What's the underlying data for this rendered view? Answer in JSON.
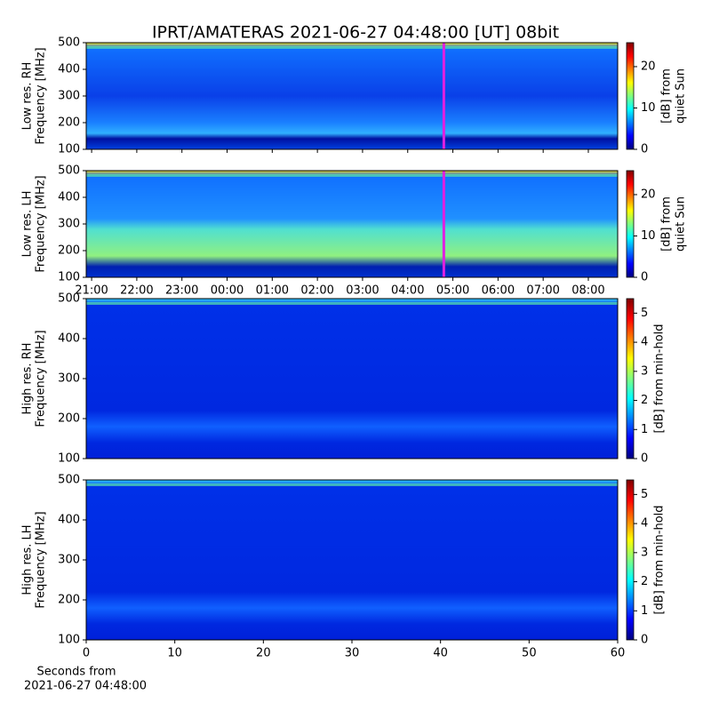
{
  "title": "IPRT/AMATERAS 2021-06-27 04:48:00 [UT]   08bit",
  "chart_data": [
    {
      "type": "heatmap",
      "ylabel": [
        "Low res. RH",
        "Frequency [MHz]"
      ],
      "ylim": [
        100,
        500
      ],
      "yticks": [
        100,
        200,
        300,
        400,
        500
      ],
      "xlim": [
        20.88,
        32.65
      ],
      "marker_x": 28.8,
      "marker_color": "#e020e0",
      "colorbar_label": [
        "[dB] from",
        "quiet Sun"
      ],
      "clim": [
        0,
        25.8
      ],
      "cticks": [
        0,
        10,
        20
      ]
    },
    {
      "type": "heatmap",
      "ylabel": [
        "Low res. LH",
        "Frequency [MHz]"
      ],
      "ylim": [
        100,
        500
      ],
      "yticks": [
        100,
        200,
        300,
        400,
        500
      ],
      "xlim": [
        20.88,
        32.65
      ],
      "marker_x": 28.8,
      "marker_color": "#e020e0",
      "xticks": [
        {
          "value": 21,
          "label": "21:00"
        },
        {
          "value": 22,
          "label": "22:00"
        },
        {
          "value": 23,
          "label": "23:00"
        },
        {
          "value": 24,
          "label": "00:00"
        },
        {
          "value": 25,
          "label": "01:00"
        },
        {
          "value": 26,
          "label": "02:00"
        },
        {
          "value": 27,
          "label": "03:00"
        },
        {
          "value": 28,
          "label": "04:00"
        },
        {
          "value": 29,
          "label": "05:00"
        },
        {
          "value": 30,
          "label": "06:00"
        },
        {
          "value": 31,
          "label": "07:00"
        },
        {
          "value": 32,
          "label": "08:00"
        }
      ],
      "colorbar_label": [
        "[dB] from",
        "quiet Sun"
      ],
      "clim": [
        0,
        25.8
      ],
      "cticks": [
        0,
        10,
        20
      ]
    },
    {
      "type": "heatmap",
      "ylabel": [
        "High res. RH",
        "Frequency [MHz]"
      ],
      "ylim": [
        100,
        500
      ],
      "yticks": [
        100,
        200,
        300,
        400,
        500
      ],
      "xlim": [
        0,
        60
      ],
      "colorbar_label": [
        "[dB] from min-hold"
      ],
      "clim": [
        0,
        5.5
      ],
      "cticks": [
        0,
        1,
        2,
        3,
        4,
        5
      ]
    },
    {
      "type": "heatmap",
      "ylabel": [
        "High res. LH",
        "Frequency [MHz]"
      ],
      "ylim": [
        100,
        500
      ],
      "yticks": [
        100,
        200,
        300,
        400,
        500
      ],
      "xlim": [
        0,
        60
      ],
      "xticks": [
        0,
        10,
        20,
        30,
        40,
        50,
        60
      ],
      "xlabel": [
        "Seconds from",
        "2021-06-27 04:48:00"
      ],
      "colorbar_label": [
        "[dB] from min-hold"
      ],
      "clim": [
        0,
        5.5
      ],
      "cticks": [
        0,
        1,
        2,
        3,
        4,
        5
      ]
    }
  ]
}
